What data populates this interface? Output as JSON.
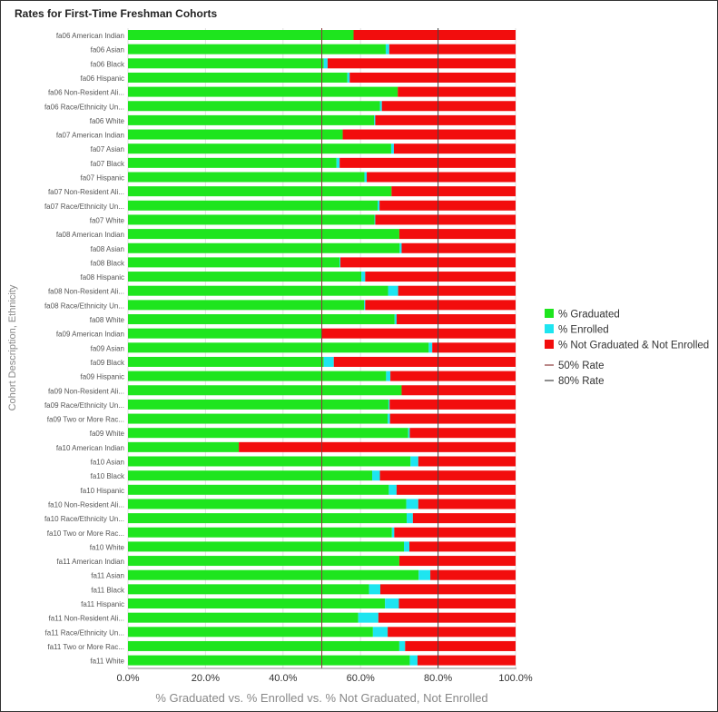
{
  "chart_data": {
    "type": "bar",
    "orientation": "horizontal",
    "stacked": true,
    "title": "Rates for First-Time Freshman Cohorts",
    "xlabel": "% Graduated vs. % Enrolled vs. % Not Graduated, Not Enrolled",
    "ylabel": "Cohort Description, Ethnicity",
    "xlim": [
      0,
      100
    ],
    "xticks": [
      "0.0%",
      "20.0%",
      "40.0%",
      "60.0%",
      "80.0%",
      "100.0%"
    ],
    "reference_lines": [
      {
        "name": "50% Rate",
        "value": 50,
        "color": "#8b3a3a"
      },
      {
        "name": "80% Rate",
        "value": 80,
        "color": "#444444"
      }
    ],
    "legend_position": "right",
    "categories": [
      "fa06 American Indian",
      "fa06 Asian",
      "fa06 Black",
      "fa06 Hispanic",
      "fa06 Non-Resident Ali...",
      "fa06 Race/Ethnicity Un...",
      "fa06 White",
      "fa07 American Indian",
      "fa07 Asian",
      "fa07 Black",
      "fa07 Hispanic",
      "fa07 Non-Resident Ali...",
      "fa07 Race/Ethnicity Un...",
      "fa07 White",
      "fa08 American Indian",
      "fa08 Asian",
      "fa08 Black",
      "fa08 Hispanic",
      "fa08 Non-Resident Ali...",
      "fa08 Race/Ethnicity Un...",
      "fa08 White",
      "fa09 American Indian",
      "fa09 Asian",
      "fa09 Black",
      "fa09 Hispanic",
      "fa09 Non-Resident Ali...",
      "fa09 Race/Ethnicity Un...",
      "fa09 Two or More Rac...",
      "fa09 White",
      "fa10 American Indian",
      "fa10 Asian",
      "fa10 Black",
      "fa10 Hispanic",
      "fa10 Non-Resident Ali...",
      "fa10 Race/Ethnicity Un...",
      "fa10 Two or More Rac...",
      "fa10 White",
      "fa11 American Indian",
      "fa11 Asian",
      "fa11 Black",
      "fa11 Hispanic",
      "fa11 Non-Resident Ali...",
      "fa11 Race/Ethnicity Un...",
      "fa11 Two or More Rac...",
      "fa11 White"
    ],
    "series": [
      {
        "name": "% Graduated",
        "color": "#1ee51e",
        "values": [
          58.2,
          66.5,
          50.5,
          56.6,
          69.6,
          65.0,
          63.5,
          55.4,
          67.9,
          53.8,
          61.0,
          68.0,
          64.4,
          63.6,
          70.0,
          70.1,
          54.6,
          60.2,
          67.1,
          60.9,
          68.8,
          50.0,
          77.6,
          50.5,
          66.6,
          70.6,
          67.2,
          67.0,
          72.3,
          28.6,
          72.9,
          63.0,
          67.3,
          71.8,
          71.9,
          68.1,
          71.2,
          70.0,
          75.0,
          62.2,
          66.3,
          59.4,
          63.2,
          70.0,
          72.7
        ]
      },
      {
        "name": "% Enrolled",
        "color": "#1ee5f0",
        "values": [
          0.0,
          0.9,
          1.0,
          0.6,
          0.0,
          0.5,
          0.3,
          0.0,
          0.7,
          0.8,
          0.6,
          0.0,
          0.5,
          0.2,
          0.0,
          0.5,
          0.2,
          1.0,
          2.6,
          0.3,
          0.5,
          0.0,
          0.9,
          2.6,
          1.1,
          0.0,
          0.3,
          0.6,
          0.4,
          0.0,
          2.0,
          2.0,
          2.0,
          3.1,
          1.6,
          0.6,
          1.4,
          0.0,
          3.0,
          2.9,
          3.6,
          5.2,
          3.8,
          1.5,
          2.0
        ]
      },
      {
        "name": "% Not Graduated & Not Enrolled",
        "color": "#f20d0d",
        "values": [
          41.8,
          32.6,
          48.5,
          42.8,
          30.4,
          34.5,
          36.2,
          44.6,
          31.4,
          45.4,
          38.4,
          32.0,
          35.1,
          36.2,
          30.0,
          29.4,
          45.2,
          38.8,
          30.3,
          38.8,
          30.7,
          50.0,
          21.5,
          46.9,
          32.3,
          29.4,
          32.5,
          32.4,
          27.3,
          71.4,
          25.1,
          35.0,
          30.7,
          25.1,
          26.5,
          31.3,
          27.4,
          30.0,
          22.0,
          34.9,
          30.1,
          35.4,
          33.0,
          28.5,
          25.3
        ]
      }
    ]
  }
}
